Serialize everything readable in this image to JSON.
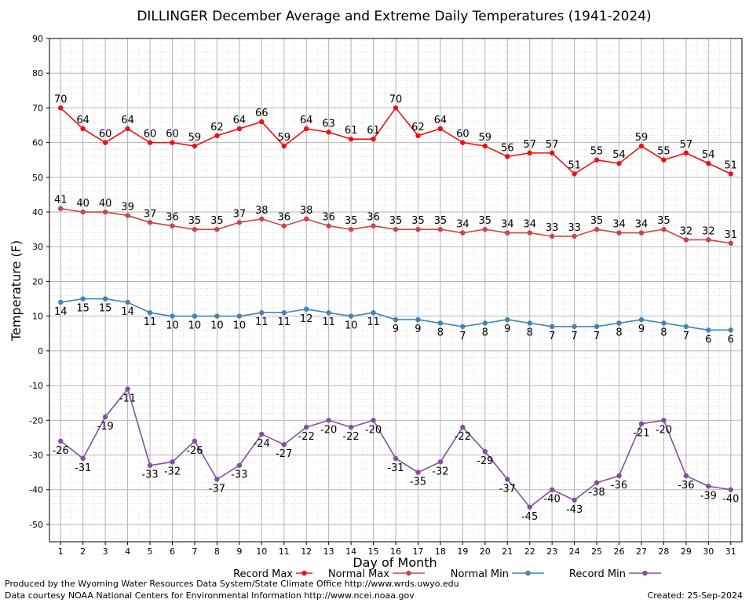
{
  "chart_data": {
    "type": "line",
    "title": "DILLINGER December Average and Extreme Daily Temperatures (1941-2024)",
    "xlabel": "Day of Month",
    "ylabel": "Temperature (F)",
    "x": [
      1,
      2,
      3,
      4,
      5,
      6,
      7,
      8,
      9,
      10,
      11,
      12,
      13,
      14,
      15,
      16,
      17,
      18,
      19,
      20,
      21,
      22,
      23,
      24,
      25,
      26,
      27,
      28,
      29,
      30,
      31
    ],
    "xlim": [
      0.5,
      31.5
    ],
    "ylim": [
      -55,
      90
    ],
    "yticks": [
      90,
      80,
      70,
      60,
      50,
      40,
      30,
      20,
      10,
      0,
      -10,
      -20,
      -30,
      -40,
      -50
    ],
    "grid": true,
    "legend_position": "bottom",
    "series": [
      {
        "name": "Record Max",
        "color": "#ee1111",
        "values": [
          70,
          64,
          60,
          64,
          60,
          60,
          59,
          62,
          64,
          66,
          59,
          64,
          63,
          61,
          61,
          70,
          62,
          64,
          60,
          59,
          56,
          57,
          57,
          51,
          55,
          54,
          59,
          55,
          57,
          54,
          51
        ]
      },
      {
        "name": "Normal Max",
        "color": "#c84646",
        "values": [
          41,
          40,
          40,
          39,
          37,
          36,
          35,
          35,
          37,
          38,
          36,
          38,
          36,
          35,
          36,
          35,
          35,
          35,
          34,
          35,
          34,
          34,
          33,
          33,
          35,
          34,
          34,
          35,
          32,
          32,
          31
        ]
      },
      {
        "name": "Normal Min",
        "color": "#4682b4",
        "values": [
          14,
          15,
          15,
          14,
          11,
          10,
          10,
          10,
          10,
          11,
          11,
          12,
          11,
          10,
          11,
          9,
          9,
          8,
          7,
          8,
          9,
          8,
          7,
          7,
          7,
          8,
          9,
          8,
          7,
          6,
          6
        ]
      },
      {
        "name": "Record Min",
        "color": "#8050a0",
        "values": [
          -26,
          -31,
          -19,
          -11,
          -33,
          -32,
          -26,
          -37,
          -33,
          -24,
          -27,
          -22,
          -20,
          -22,
          -20,
          -31,
          -35,
          -32,
          -22,
          -29,
          -37,
          -45,
          -40,
          -43,
          -38,
          -36,
          -21,
          -20,
          -36,
          -39,
          -40
        ]
      }
    ]
  },
  "footer": {
    "produced_by": "Produced by the Wyoming Water Resources Data System/State Climate Office http://www.wrds.uwyo.edu",
    "data_courtesy": "Data courtesy NOAA National Centers for Environmental Information http://www.ncei.noaa.gov",
    "created": "Created:  25-Sep-2024"
  }
}
